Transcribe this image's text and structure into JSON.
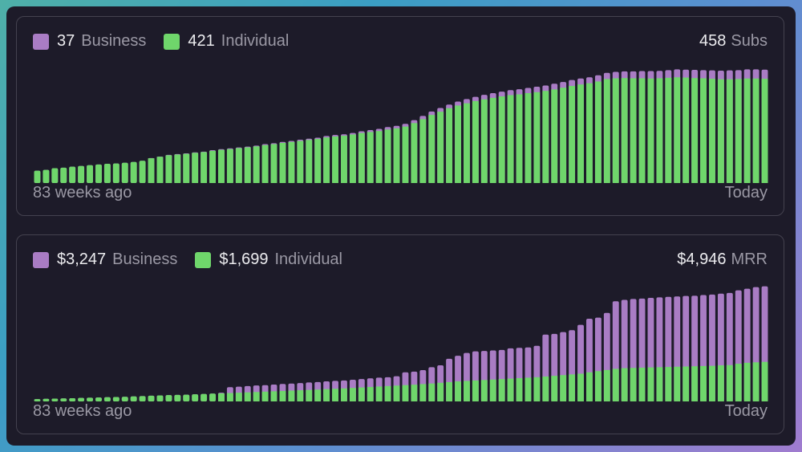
{
  "colors": {
    "business": "#a97cc4",
    "individual": "#6fd66b",
    "background": "#1d1b29",
    "border": "#44424f",
    "text": "#ececef",
    "muted": "#9a98a4"
  },
  "subs_panel": {
    "legend": [
      {
        "value": "37",
        "label": "Business",
        "color": "#a97cc4",
        "icon": "square-swatch"
      },
      {
        "value": "421",
        "label": "Individual",
        "color": "#6fd66b",
        "icon": "square-swatch"
      }
    ],
    "total_value": "458",
    "total_label": "Subs",
    "x_start_label": "83 weeks ago",
    "x_end_label": "Today"
  },
  "mrr_panel": {
    "legend": [
      {
        "value": "$3,247",
        "label": "Business",
        "color": "#a97cc4",
        "icon": "square-swatch"
      },
      {
        "value": "$1,699",
        "label": "Individual",
        "color": "#6fd66b",
        "icon": "square-swatch"
      }
    ],
    "total_value": "$4,946",
    "total_label": "MRR",
    "x_start_label": "83 weeks ago",
    "x_end_label": "Today"
  },
  "chart_data": [
    {
      "type": "bar",
      "stacked": true,
      "x_start_label": "83 weeks ago",
      "x_end_label": "Today",
      "ylim": [
        0,
        470
      ],
      "grid": false,
      "legend_placement": "top-left",
      "series": [
        {
          "name": "Individual",
          "color": "#6fd66b",
          "values": [
            50,
            53,
            60,
            62,
            66,
            69,
            72,
            75,
            78,
            79,
            82,
            85,
            90,
            100,
            106,
            112,
            115,
            118,
            122,
            125,
            130,
            134,
            137,
            141,
            144,
            148,
            153,
            157,
            162,
            166,
            170,
            174,
            178,
            184,
            188,
            191,
            196,
            202,
            206,
            210,
            216,
            221,
            228,
            242,
            258,
            275,
            288,
            302,
            313,
            322,
            331,
            338,
            344,
            350,
            355,
            358,
            363,
            367,
            372,
            378,
            385,
            392,
            398,
            403,
            410,
            420,
            423,
            424,
            423,
            423,
            422,
            423,
            425,
            427,
            426,
            424,
            423,
            421,
            419,
            419,
            420,
            422,
            422,
            421
          ]
        },
        {
          "name": "Business",
          "color": "#a97cc4",
          "values": [
            0,
            0,
            0,
            0,
            0,
            0,
            0,
            0,
            0,
            0,
            0,
            0,
            0,
            1,
            1,
            2,
            2,
            2,
            2,
            2,
            3,
            3,
            3,
            3,
            3,
            3,
            4,
            4,
            4,
            4,
            5,
            5,
            5,
            6,
            6,
            6,
            6,
            7,
            8,
            9,
            10,
            10,
            11,
            12,
            13,
            14,
            15,
            15,
            16,
            17,
            17,
            18,
            19,
            19,
            20,
            21,
            21,
            22,
            22,
            23,
            23,
            24,
            24,
            24,
            25,
            25,
            26,
            27,
            28,
            29,
            30,
            30,
            31,
            32,
            32,
            33,
            33,
            34,
            35,
            36,
            36,
            37,
            37,
            37
          ]
        }
      ]
    },
    {
      "type": "bar",
      "stacked": true,
      "x_start_label": "83 weeks ago",
      "x_end_label": "Today",
      "ylim": [
        0,
        5000
      ],
      "grid": false,
      "legend_placement": "top-left",
      "series": [
        {
          "name": "Individual",
          "color": "#6fd66b",
          "values": [
            100,
            110,
            120,
            130,
            140,
            150,
            160,
            170,
            180,
            190,
            200,
            215,
            230,
            245,
            260,
            270,
            280,
            290,
            305,
            320,
            335,
            345,
            360,
            375,
            390,
            405,
            420,
            435,
            450,
            465,
            480,
            495,
            510,
            530,
            545,
            560,
            580,
            600,
            620,
            640,
            660,
            680,
            700,
            720,
            745,
            770,
            800,
            830,
            860,
            880,
            900,
            920,
            940,
            960,
            980,
            1000,
            1020,
            1040,
            1070,
            1100,
            1130,
            1160,
            1190,
            1250,
            1300,
            1350,
            1400,
            1430,
            1440,
            1450,
            1460,
            1470,
            1480,
            1490,
            1500,
            1510,
            1520,
            1530,
            1550,
            1560,
            1620,
            1660,
            1680,
            1699
          ]
        },
        {
          "name": "Business",
          "color": "#a97cc4",
          "values": [
            0,
            0,
            0,
            0,
            0,
            0,
            0,
            0,
            0,
            0,
            0,
            0,
            0,
            0,
            0,
            0,
            0,
            0,
            0,
            0,
            0,
            30,
            250,
            260,
            270,
            280,
            280,
            290,
            300,
            300,
            310,
            320,
            320,
            330,
            340,
            340,
            350,
            360,
            370,
            380,
            380,
            400,
            550,
            560,
            600,
            700,
            750,
            1000,
            1100,
            1200,
            1250,
            1250,
            1250,
            1250,
            1300,
            1300,
            1300,
            1350,
            1800,
            1800,
            1850,
            1900,
            2100,
            2300,
            2300,
            2450,
            2900,
            2930,
            2960,
            2970,
            2990,
            3000,
            3010,
            3020,
            3030,
            3030,
            3050,
            3060,
            3080,
            3100,
            3150,
            3180,
            3230,
            3247
          ]
        }
      ]
    }
  ]
}
